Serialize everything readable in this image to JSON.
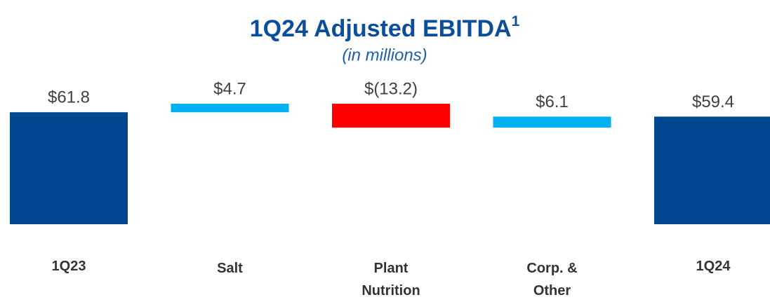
{
  "chart_data": {
    "type": "waterfall",
    "title": "1Q24 Adjusted EBITDA",
    "title_footnote": "1",
    "subtitle": "(in millions)",
    "categories": [
      "1Q23",
      "Salt",
      "Plant Nutrition",
      "Corp. & Other",
      "1Q24"
    ],
    "measure": [
      "total",
      "relative",
      "relative",
      "relative",
      "total"
    ],
    "values": [
      61.8,
      4.7,
      -13.2,
      6.1,
      59.4
    ],
    "value_labels": [
      "$61.8",
      "$4.7",
      "$(13.2)",
      "$6.1",
      "$59.4"
    ],
    "colors": {
      "total": "#00478f",
      "increase": "#00b0f0",
      "decrease": "#ff0000"
    },
    "ylim": [
      0,
      70
    ]
  }
}
